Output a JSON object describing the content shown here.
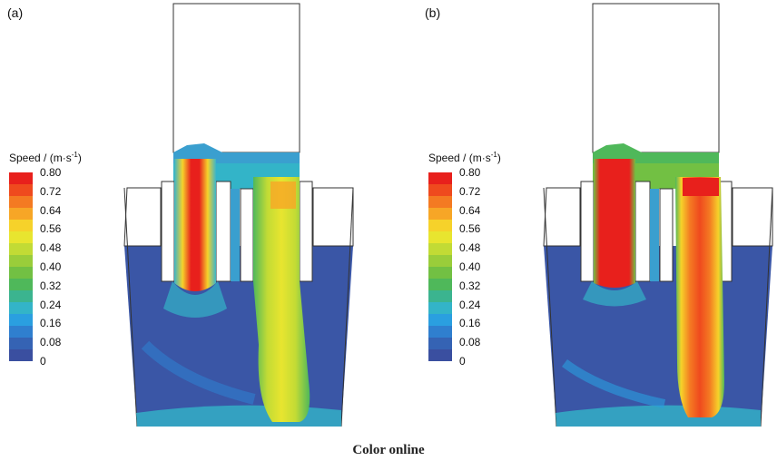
{
  "panels": [
    {
      "label": "(a)"
    },
    {
      "label": "(b)"
    }
  ],
  "legend": {
    "title_main": "Speed / (m·s",
    "title_sup": "-1",
    "title_end": ")",
    "ticks": [
      "0.80",
      "0.72",
      "0.64",
      "0.56",
      "0.48",
      "0.40",
      "0.32",
      "0.24",
      "0.16",
      "0.08",
      "0"
    ],
    "colors": [
      "#e8201c",
      "#ef4a1e",
      "#f47a22",
      "#f7a626",
      "#f6d22a",
      "#e8e52f",
      "#c2db35",
      "#9acd3a",
      "#72c043",
      "#4fb85a",
      "#3bb48f",
      "#33b4c8",
      "#2a9fe0",
      "#2f7fcf",
      "#3563b4",
      "#3a4fa0"
    ]
  },
  "caption": "Color online"
}
